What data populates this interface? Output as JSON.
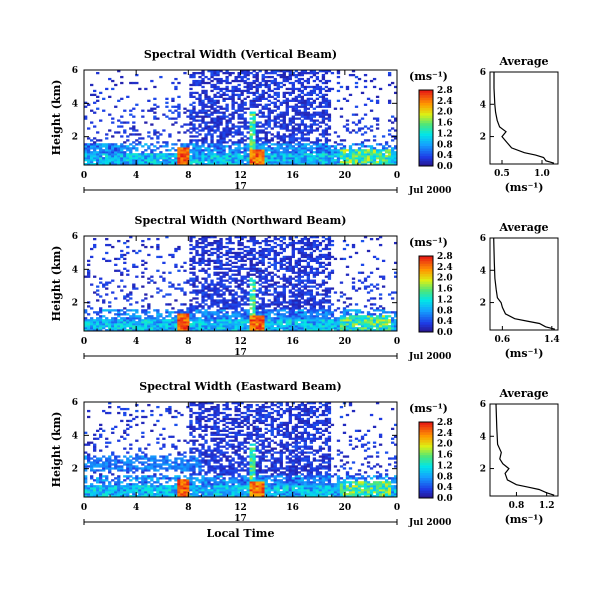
{
  "chart_data": [
    {
      "type": "heatmap",
      "title": "Spectral Width (Vertical Beam)",
      "ylabel": "Height (km)",
      "xlabel": "",
      "x_ticks": [
        "0",
        "4",
        "8",
        "12",
        "16",
        "20",
        "0"
      ],
      "y_ticks": [
        "2",
        "4",
        "6"
      ],
      "xlim": [
        0,
        24
      ],
      "ylim": [
        0.3,
        6
      ],
      "date_label": "17",
      "month_year": "Jul 2000",
      "colorbar": {
        "unit": "(ms⁻¹)",
        "ticks": [
          "0.0",
          "0.4",
          "0.8",
          "1.2",
          "1.6",
          "2.0",
          "2.4",
          "2.8"
        ],
        "range": [
          0,
          2.8
        ]
      },
      "average": {
        "title": "Average",
        "xlabel": "(ms⁻¹)",
        "x_ticks": [
          "0.5",
          "1.0"
        ],
        "xlim": [
          0.35,
          1.2
        ],
        "y_ticks": [
          "2",
          "4",
          "6"
        ],
        "profile": [
          [
            1.15,
            0.35
          ],
          [
            1.05,
            0.5
          ],
          [
            1.02,
            0.7
          ],
          [
            0.92,
            0.85
          ],
          [
            0.78,
            1.0
          ],
          [
            0.62,
            1.3
          ],
          [
            0.55,
            1.7
          ],
          [
            0.5,
            2.0
          ],
          [
            0.55,
            2.3
          ],
          [
            0.47,
            2.6
          ],
          [
            0.44,
            3.0
          ],
          [
            0.42,
            3.5
          ],
          [
            0.41,
            4.0
          ],
          [
            0.4,
            5.0
          ],
          [
            0.4,
            6.0
          ]
        ]
      }
    },
    {
      "type": "heatmap",
      "title": "Spectral Width (Northward Beam)",
      "ylabel": "Height (km)",
      "xlabel": "",
      "x_ticks": [
        "0",
        "4",
        "8",
        "12",
        "16",
        "20",
        "0"
      ],
      "y_ticks": [
        "2",
        "4",
        "6"
      ],
      "xlim": [
        0,
        24
      ],
      "ylim": [
        0.3,
        6
      ],
      "date_label": "17",
      "month_year": "Jul 2000",
      "colorbar": {
        "unit": "(ms⁻¹)",
        "ticks": [
          "0.0",
          "0.4",
          "0.8",
          "1.2",
          "1.6",
          "2.0",
          "2.4",
          "2.8"
        ],
        "range": [
          0,
          2.8
        ]
      },
      "average": {
        "title": "Average",
        "xlabel": "(ms⁻¹)",
        "x_ticks": [
          "0.6",
          "1.4"
        ],
        "xlim": [
          0.4,
          1.5
        ],
        "y_ticks": [
          "2",
          "4",
          "6"
        ],
        "profile": [
          [
            1.45,
            0.35
          ],
          [
            1.3,
            0.5
          ],
          [
            1.2,
            0.7
          ],
          [
            1.0,
            0.85
          ],
          [
            0.8,
            1.0
          ],
          [
            0.65,
            1.3
          ],
          [
            0.6,
            1.7
          ],
          [
            0.58,
            2.0
          ],
          [
            0.52,
            2.3
          ],
          [
            0.5,
            2.8
          ],
          [
            0.48,
            3.5
          ],
          [
            0.47,
            4.5
          ],
          [
            0.46,
            6.0
          ]
        ]
      }
    },
    {
      "type": "heatmap",
      "title": "Spectral Width (Eastward Beam)",
      "ylabel": "Height (km)",
      "xlabel": "Local Time",
      "x_ticks": [
        "0",
        "4",
        "8",
        "12",
        "16",
        "20",
        "0"
      ],
      "y_ticks": [
        "2",
        "4",
        "6"
      ],
      "xlim": [
        0,
        24
      ],
      "ylim": [
        0.3,
        6
      ],
      "date_label": "17",
      "month_year": "Jul 2000",
      "colorbar": {
        "unit": "(ms⁻¹)",
        "ticks": [
          "0.0",
          "0.4",
          "0.8",
          "1.2",
          "1.6",
          "2.0",
          "2.4",
          "2.8"
        ],
        "range": [
          0,
          2.8
        ]
      },
      "average": {
        "title": "Average",
        "xlabel": "(ms⁻¹)",
        "x_ticks": [
          "0.8",
          "1.2"
        ],
        "xlim": [
          0.45,
          1.35
        ],
        "y_ticks": [
          "2",
          "4",
          "6"
        ],
        "profile": [
          [
            1.3,
            0.35
          ],
          [
            1.2,
            0.5
          ],
          [
            1.1,
            0.7
          ],
          [
            0.95,
            0.85
          ],
          [
            0.8,
            1.0
          ],
          [
            0.68,
            1.3
          ],
          [
            0.65,
            1.7
          ],
          [
            0.7,
            2.0
          ],
          [
            0.62,
            2.3
          ],
          [
            0.58,
            2.6
          ],
          [
            0.6,
            3.0
          ],
          [
            0.55,
            3.5
          ],
          [
            0.54,
            4.5
          ],
          [
            0.53,
            6.0
          ]
        ]
      }
    }
  ]
}
